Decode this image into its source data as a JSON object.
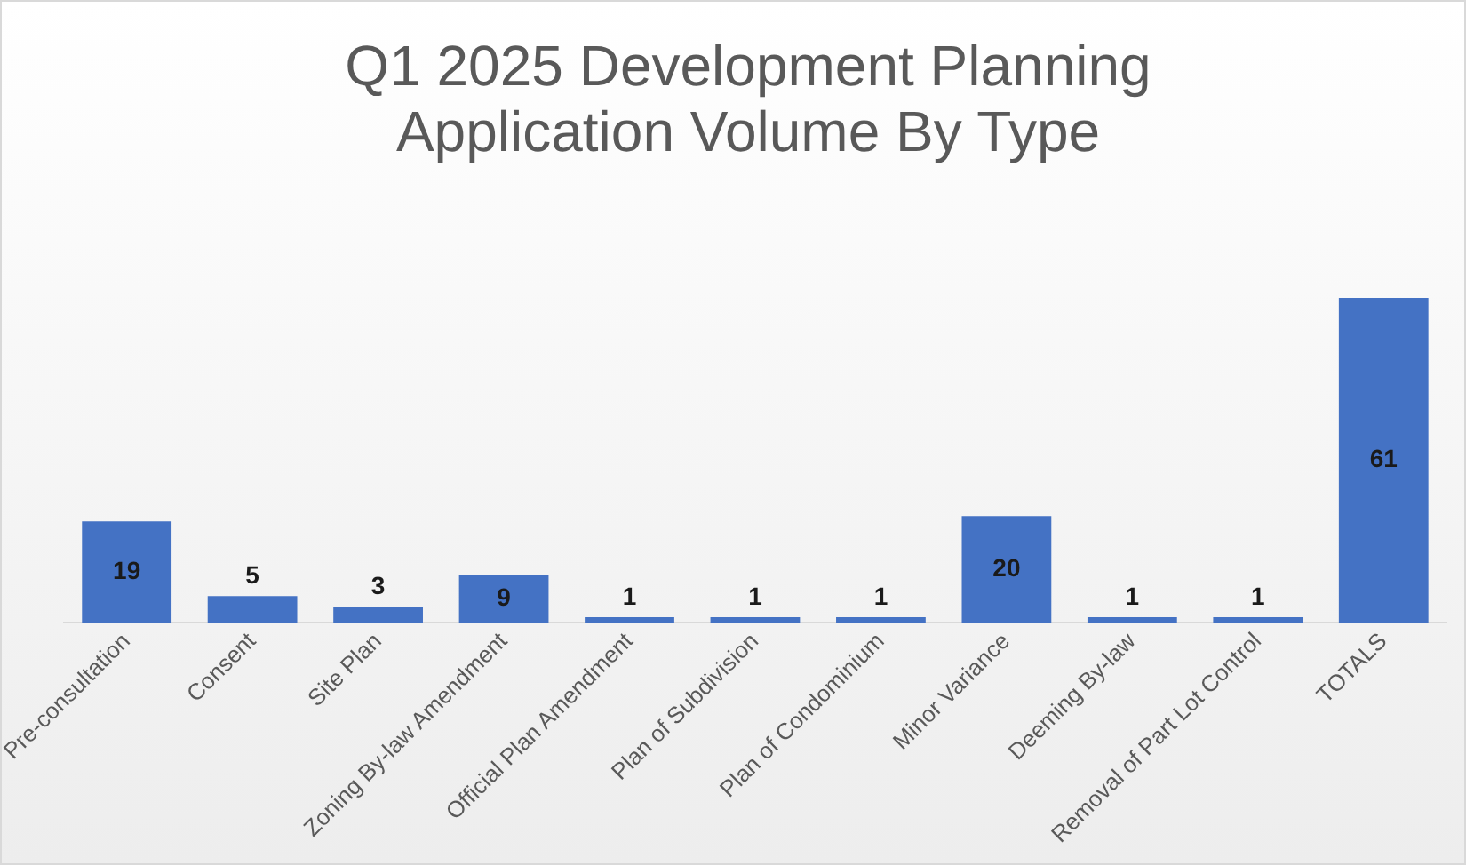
{
  "chart_data": {
    "type": "bar",
    "title": "Q1 2025 Development Planning Application Volume By Type",
    "categories": [
      "Pre-consultation",
      "Consent",
      "Site Plan",
      "Zoning By-law Amendment",
      "Official Plan Amendment",
      "Plan of Subdivision",
      "Plan of Condominium",
      "Minor Variance",
      "Deeming By-law",
      "Removal of Part Lot Control",
      "TOTALS"
    ],
    "values": [
      19,
      5,
      3,
      9,
      1,
      1,
      1,
      20,
      1,
      1,
      61
    ],
    "color": "#4472c4",
    "data_labels": true,
    "grid": false,
    "legend": false
  }
}
